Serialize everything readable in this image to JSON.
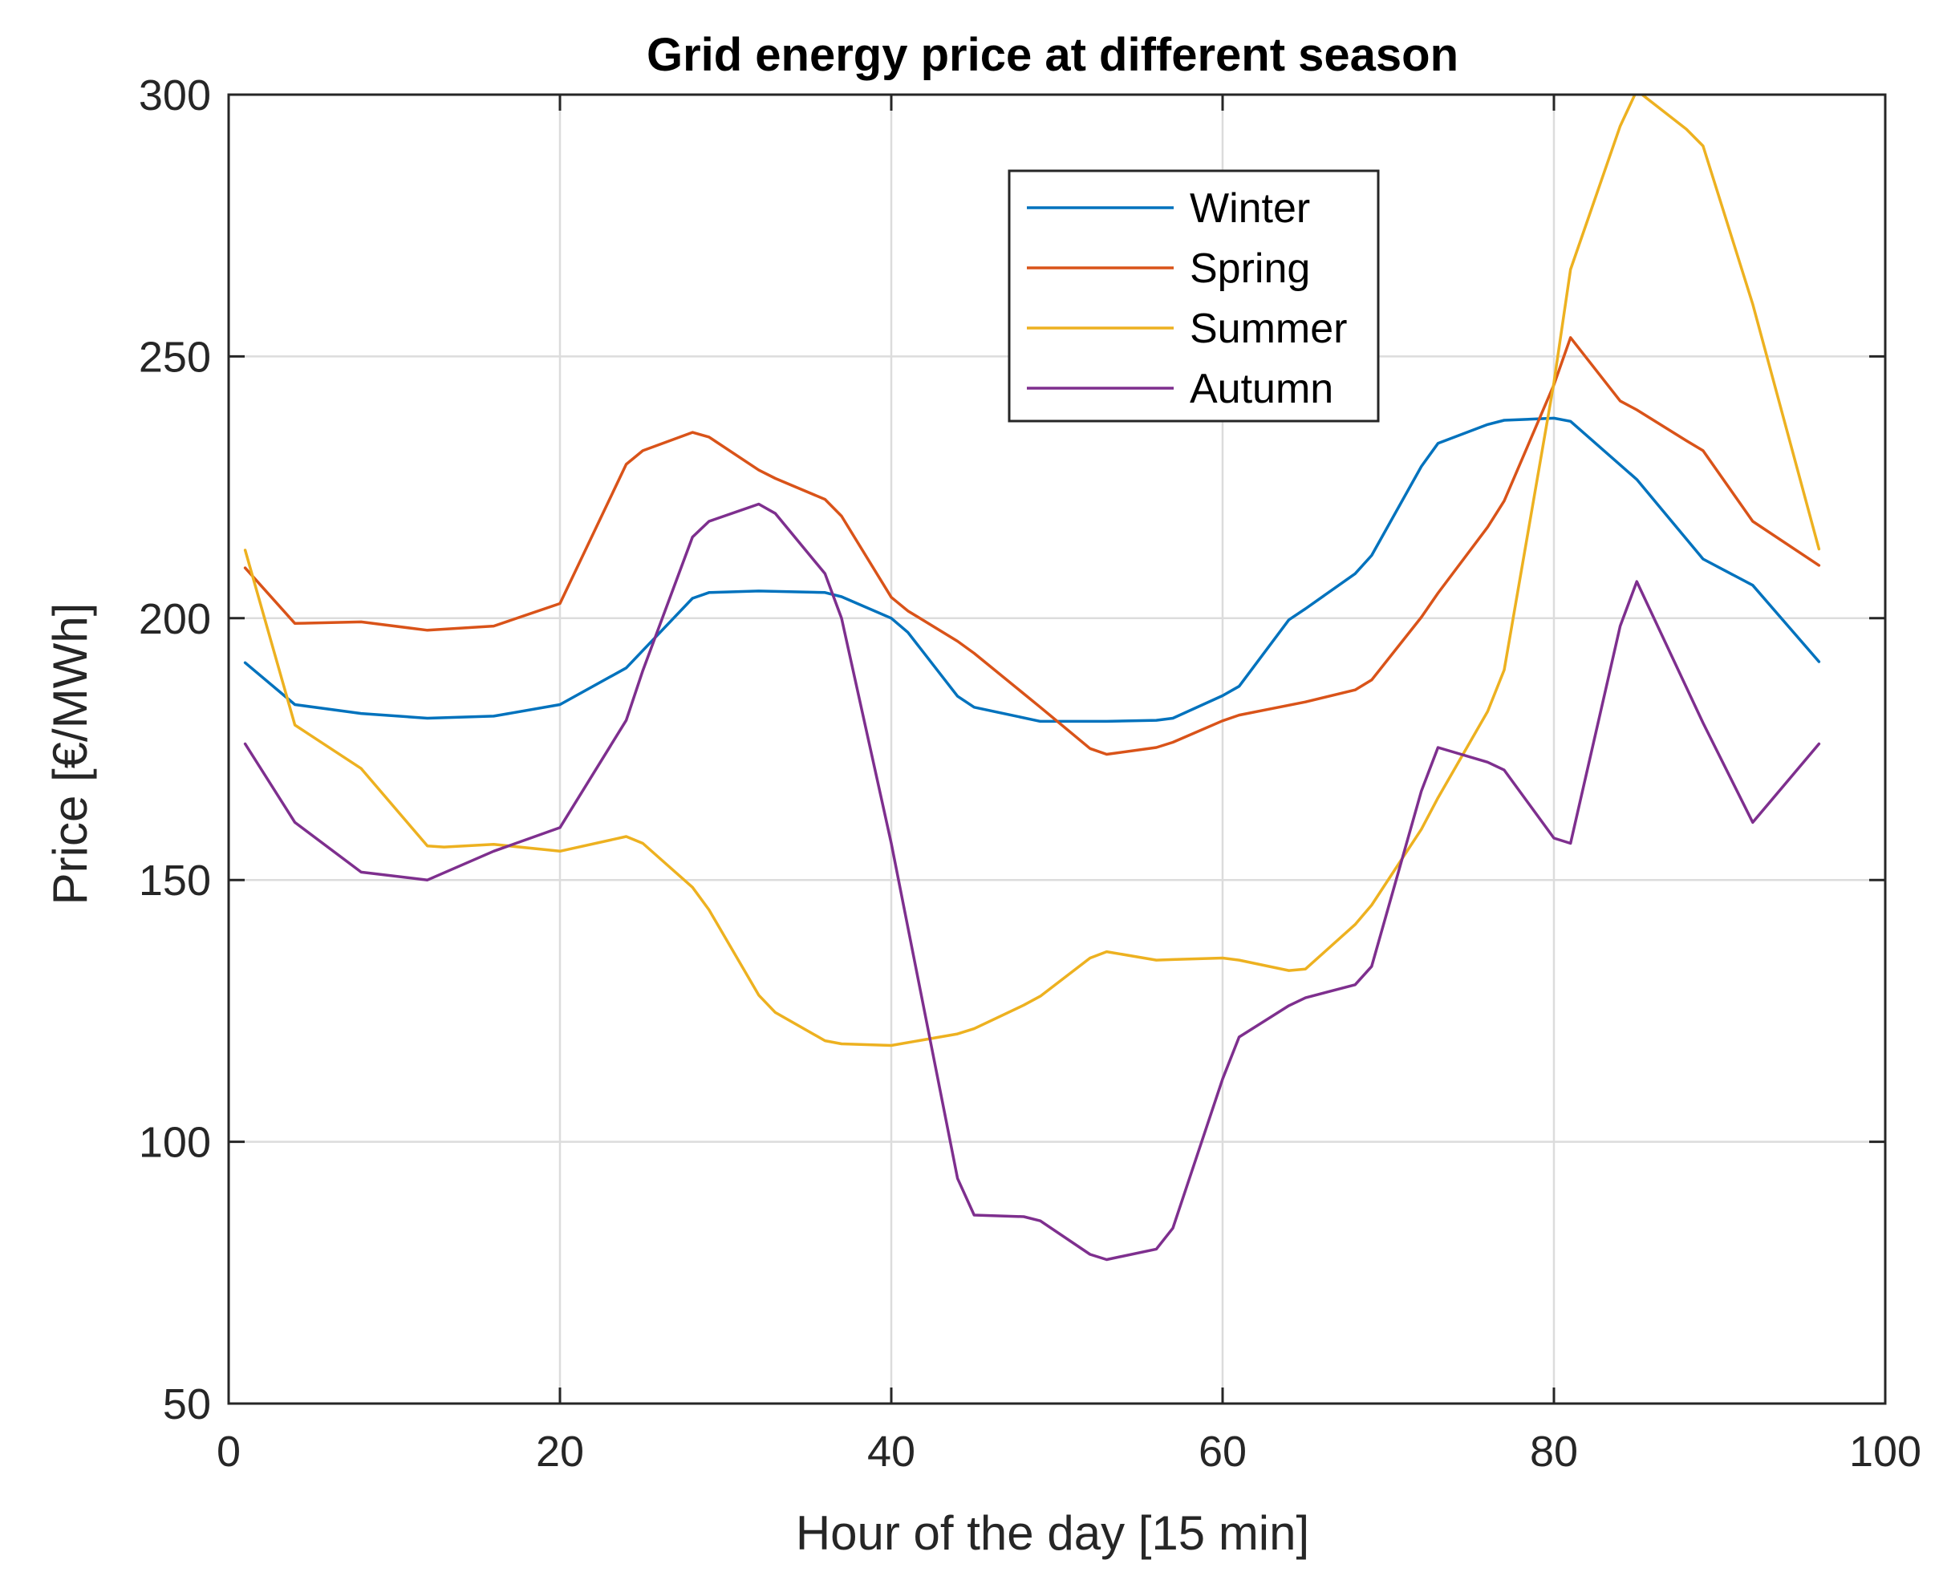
{
  "chart_data": {
    "type": "line",
    "title": "Grid energy price at different season",
    "xlabel": "Hour of the day [15 min]",
    "ylabel": "Price [€/MWh]",
    "xlim": [
      0,
      100
    ],
    "ylim": [
      50,
      300
    ],
    "xticks": [
      0,
      20,
      40,
      60,
      80,
      100
    ],
    "yticks": [
      50,
      100,
      150,
      200,
      250,
      300
    ],
    "grid": true,
    "legend_position": "top-center-right",
    "series": [
      {
        "name": "Winter",
        "color": "#0072BD",
        "points": [
          [
            1,
            191.5
          ],
          [
            4,
            183.5
          ],
          [
            8,
            181.8
          ],
          [
            12,
            180.9
          ],
          [
            16,
            181.3
          ],
          [
            20,
            183.5
          ],
          [
            24,
            190.5
          ],
          [
            28,
            203.8
          ],
          [
            29,
            204.9
          ],
          [
            32,
            205.2
          ],
          [
            36,
            204.9
          ],
          [
            37,
            204.1
          ],
          [
            40,
            200
          ],
          [
            41,
            197.3
          ],
          [
            44,
            185.1
          ],
          [
            45,
            183
          ],
          [
            49,
            180.3
          ],
          [
            53,
            180.3
          ],
          [
            56,
            180.5
          ],
          [
            57,
            180.9
          ],
          [
            60,
            185.2
          ],
          [
            61,
            187
          ],
          [
            64,
            199.7
          ],
          [
            65,
            201.8
          ],
          [
            68,
            208.5
          ],
          [
            69,
            212
          ],
          [
            72,
            229
          ],
          [
            73,
            233.4
          ],
          [
            76,
            237
          ],
          [
            77,
            237.8
          ],
          [
            80,
            238.2
          ],
          [
            81,
            237.6
          ],
          [
            85,
            226.5
          ],
          [
            89,
            211.3
          ],
          [
            92,
            206.3
          ],
          [
            96,
            191.7
          ]
        ]
      },
      {
        "name": "Spring",
        "color": "#D95319",
        "points": [
          [
            1,
            209.6
          ],
          [
            4,
            199
          ],
          [
            8,
            199.3
          ],
          [
            12,
            197.7
          ],
          [
            16,
            198.5
          ],
          [
            20,
            202.8
          ],
          [
            24,
            229.4
          ],
          [
            25,
            232
          ],
          [
            28,
            235.5
          ],
          [
            29,
            234.6
          ],
          [
            32,
            228.3
          ],
          [
            33,
            226.7
          ],
          [
            36,
            222.7
          ],
          [
            37,
            219.5
          ],
          [
            40,
            204
          ],
          [
            41,
            201.4
          ],
          [
            44,
            195.6
          ],
          [
            45,
            193.3
          ],
          [
            49,
            183
          ],
          [
            52,
            175.1
          ],
          [
            53,
            174
          ],
          [
            56,
            175.3
          ],
          [
            57,
            176.3
          ],
          [
            60,
            180.4
          ],
          [
            61,
            181.5
          ],
          [
            65,
            184
          ],
          [
            68,
            186.3
          ],
          [
            69,
            188.2
          ],
          [
            72,
            200.2
          ],
          [
            73,
            204.8
          ],
          [
            76,
            217.4
          ],
          [
            77,
            222.4
          ],
          [
            80,
            244.6
          ],
          [
            81,
            253.6
          ],
          [
            84,
            241.5
          ],
          [
            85,
            239.8
          ],
          [
            88,
            233.9
          ],
          [
            89,
            232
          ],
          [
            92,
            218.5
          ],
          [
            96,
            210.1
          ]
        ]
      },
      {
        "name": "Summer",
        "color": "#EDB120",
        "points": [
          [
            1,
            213
          ],
          [
            4,
            179.6
          ],
          [
            8,
            171.3
          ],
          [
            12,
            156.5
          ],
          [
            13,
            156.3
          ],
          [
            16,
            156.8
          ],
          [
            20,
            155.5
          ],
          [
            24,
            158.3
          ],
          [
            25,
            157
          ],
          [
            28,
            148.6
          ],
          [
            29,
            144.3
          ],
          [
            32,
            128
          ],
          [
            33,
            124.7
          ],
          [
            36,
            119.3
          ],
          [
            37,
            118.7
          ],
          [
            40,
            118.4
          ],
          [
            44,
            120.6
          ],
          [
            45,
            121.6
          ],
          [
            48,
            126.1
          ],
          [
            49,
            127.8
          ],
          [
            52,
            135.1
          ],
          [
            53,
            136.3
          ],
          [
            56,
            134.7
          ],
          [
            57,
            134.8
          ],
          [
            60,
            135.1
          ],
          [
            61,
            134.7
          ],
          [
            64,
            132.7
          ],
          [
            65,
            133
          ],
          [
            68,
            141.5
          ],
          [
            69,
            145.2
          ],
          [
            72,
            159.7
          ],
          [
            73,
            165.7
          ],
          [
            76,
            182.2
          ],
          [
            77,
            190.1
          ],
          [
            80,
            245
          ],
          [
            81,
            266.6
          ],
          [
            84,
            294
          ],
          [
            85,
            300.8
          ],
          [
            88,
            293.4
          ],
          [
            89,
            290.2
          ],
          [
            92,
            260
          ],
          [
            96,
            213.2
          ]
        ]
      },
      {
        "name": "Autumn",
        "color": "#7E2F8E",
        "points": [
          [
            1,
            176
          ],
          [
            4,
            161
          ],
          [
            8,
            151.5
          ],
          [
            12,
            150
          ],
          [
            16,
            155.5
          ],
          [
            20,
            160
          ],
          [
            24,
            180.5
          ],
          [
            25,
            190
          ],
          [
            28,
            215.5
          ],
          [
            29,
            218.5
          ],
          [
            32,
            221.8
          ],
          [
            33,
            220
          ],
          [
            36,
            208.5
          ],
          [
            37,
            200
          ],
          [
            40,
            157
          ],
          [
            44,
            93
          ],
          [
            45,
            86
          ],
          [
            48,
            85.7
          ],
          [
            49,
            84.9
          ],
          [
            52,
            78.5
          ],
          [
            53,
            77.5
          ],
          [
            56,
            79.5
          ],
          [
            57,
            83.5
          ],
          [
            60,
            112
          ],
          [
            61,
            120
          ],
          [
            64,
            126
          ],
          [
            65,
            127.5
          ],
          [
            68,
            130
          ],
          [
            69,
            133.5
          ],
          [
            72,
            167
          ],
          [
            73,
            175.3
          ],
          [
            76,
            172.5
          ],
          [
            77,
            171
          ],
          [
            80,
            158
          ],
          [
            81,
            157
          ],
          [
            84,
            198.5
          ],
          [
            85,
            207
          ],
          [
            89,
            180
          ],
          [
            92,
            161
          ],
          [
            96,
            176
          ]
        ]
      }
    ]
  }
}
